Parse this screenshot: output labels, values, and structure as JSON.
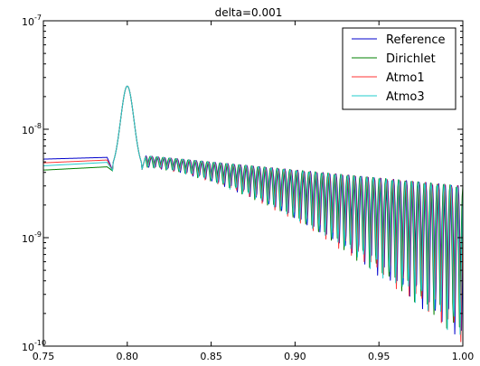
{
  "chart_data": {
    "type": "line",
    "title": "delta=0.001",
    "xlabel": "",
    "ylabel": "",
    "xlim": [
      0.75,
      1.0
    ],
    "ylim": [
      1e-10,
      1e-07
    ],
    "yscale": "log",
    "grid": false,
    "legend_position": "top-right",
    "x_ticks": [
      "0.75",
      "0.80",
      "0.85",
      "0.90",
      "0.95",
      "1.00"
    ],
    "y_ticks": [
      {
        "base": "10",
        "exp": "-10"
      },
      {
        "base": "10",
        "exp": "-9"
      },
      {
        "base": "10",
        "exp": "-8"
      },
      {
        "base": "10",
        "exp": "-7"
      }
    ],
    "series": [
      {
        "name": "Reference",
        "color": "#0000cc"
      },
      {
        "name": "Dirichlet",
        "color": "#008000"
      },
      {
        "name": "Atmo1",
        "color": "#ff3333"
      },
      {
        "name": "Atmo3",
        "color": "#22cccc"
      }
    ],
    "profile": {
      "start_values": [
        5.3e-09,
        4.2e-09,
        4.9e-09,
        4.6e-09
      ],
      "pre_peak_values": [
        5.5e-09,
        4.5e-09,
        5.2e-09,
        4.95e-09
      ],
      "pre_peak_x": 0.788,
      "dip": {
        "x": 0.7915,
        "value": 4.1e-09
      },
      "peak": {
        "x": 0.8,
        "value": 2.5e-08
      },
      "post_dip": {
        "x": 0.8085,
        "value": 4.1e-09
      },
      "oscillation": {
        "x_start": 0.811,
        "x_end": 1.0,
        "period_start": 0.00375,
        "period_end": 0.0038,
        "envelope_max_start": 5.7e-09,
        "envelope_max_end": 3e-09,
        "trough_start": 4.4e-09,
        "trough_end": 1e-10
      },
      "phase_offsets": [
        0,
        0.25,
        0.08,
        0.16
      ]
    }
  }
}
